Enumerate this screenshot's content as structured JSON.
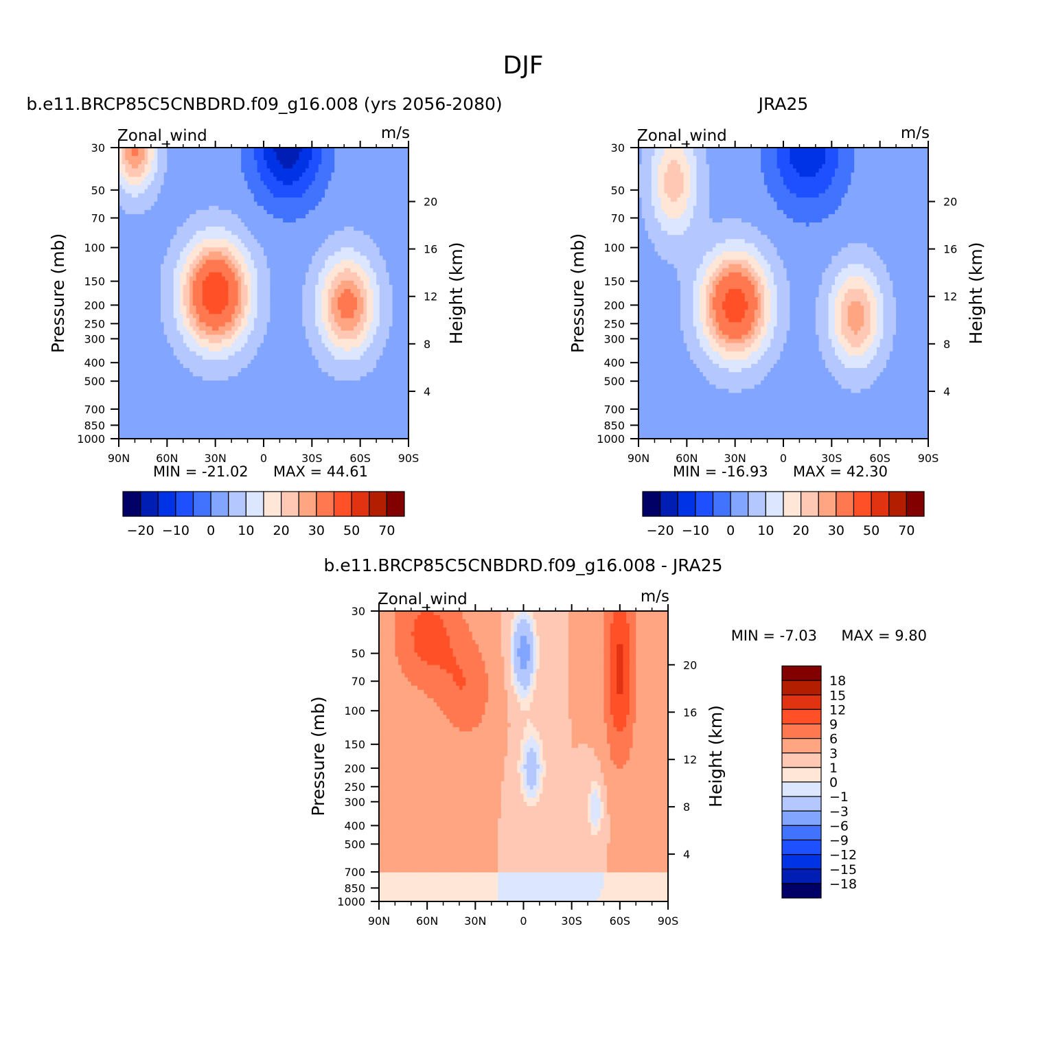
{
  "figure_title": "DJF",
  "chart_data": [
    {
      "type": "heatmap",
      "title": "b.e11.BRCP85C5CNBDRD.f09_g16.008 (yrs 2056-2080)",
      "left_string": "Zonal_wind",
      "right_string": "m/s",
      "ylabel": "Pressure (mb)",
      "y2label": "Height (km)",
      "x_ticks": [
        "90N",
        "60N",
        "30N",
        "0",
        "30S",
        "60S",
        "90S"
      ],
      "x_range": [
        90,
        -90
      ],
      "y_ticks": [
        "30",
        "50",
        "70",
        "100",
        "150",
        "200",
        "250",
        "300",
        "400",
        "500",
        "700",
        "850",
        "1000"
      ],
      "y_range": [
        1000,
        30
      ],
      "y_scale": "log",
      "y2_ticks": [
        "20",
        "16",
        "12",
        "8",
        "4"
      ],
      "min_label": "MIN = -21.02",
      "max_label": "MAX = 44.61",
      "min": -21.02,
      "max": 44.61,
      "levels": [
        -25,
        -20,
        -15,
        -10,
        -5,
        0,
        5,
        10,
        15,
        20,
        25,
        30,
        40,
        50,
        60,
        70
      ],
      "colorbar_labels": [
        "-20",
        "-10",
        "0",
        "10",
        "20",
        "30",
        "50",
        "70"
      ],
      "colorbar_orientation": "horizontal",
      "jets": [
        {
          "lat": 30,
          "p": 175,
          "peak": 44.6,
          "lat_width": 14,
          "logp_width": 0.42
        },
        {
          "lat": -52,
          "p": 200,
          "peak": 30,
          "lat_width": 12,
          "logp_width": 0.4
        },
        {
          "lat": 80,
          "p": 30,
          "peak": 28,
          "lat_width": 9,
          "logp_width": 0.35
        }
      ],
      "easterlies": [
        {
          "lat": -15,
          "p": 30,
          "peak": -21,
          "lat_width": 15,
          "logp_width": 0.45
        }
      ]
    },
    {
      "type": "heatmap",
      "title": "JRA25",
      "left_string": "Zonal_wind",
      "right_string": "m/s",
      "ylabel": "Pressure (mb)",
      "y2label": "Height (km)",
      "x_ticks": [
        "90N",
        "60N",
        "30N",
        "0",
        "30S",
        "60S",
        "90S"
      ],
      "x_range": [
        90,
        -90
      ],
      "y_ticks": [
        "30",
        "50",
        "70",
        "100",
        "150",
        "200",
        "250",
        "300",
        "400",
        "500",
        "700",
        "850",
        "1000"
      ],
      "y_range": [
        1000,
        30
      ],
      "y_scale": "log",
      "y2_ticks": [
        "20",
        "16",
        "12",
        "8",
        "4"
      ],
      "min_label": "MIN = -16.93",
      "max_label": "MAX = 42.30",
      "min": -16.93,
      "max": 42.3,
      "levels": [
        -25,
        -20,
        -15,
        -10,
        -5,
        0,
        5,
        10,
        15,
        20,
        25,
        30,
        40,
        50,
        60,
        70
      ],
      "colorbar_labels": [
        "-20",
        "-10",
        "0",
        "10",
        "20",
        "30",
        "50",
        "70"
      ],
      "colorbar_orientation": "horizontal",
      "jets": [
        {
          "lat": 30,
          "p": 200,
          "peak": 42.3,
          "lat_width": 14,
          "logp_width": 0.42
        },
        {
          "lat": -45,
          "p": 230,
          "peak": 25,
          "lat_width": 11,
          "logp_width": 0.4
        },
        {
          "lat": 68,
          "p": 45,
          "peak": 20,
          "lat_width": 10,
          "logp_width": 0.45
        }
      ],
      "easterlies": [
        {
          "lat": -15,
          "p": 30,
          "peak": -17,
          "lat_width": 16,
          "logp_width": 0.5
        }
      ]
    },
    {
      "type": "heatmap",
      "title": "b.e11.BRCP85C5CNBDRD.f09_g16.008 - JRA25",
      "left_string": "Zonal_wind",
      "right_string": "m/s",
      "ylabel": "Pressure (mb)",
      "y2label": "Height (km)",
      "x_ticks": [
        "90N",
        "60N",
        "30N",
        "0",
        "30S",
        "60S",
        "90S"
      ],
      "x_range": [
        90,
        -90
      ],
      "y_ticks": [
        "30",
        "50",
        "70",
        "100",
        "150",
        "200",
        "250",
        "300",
        "400",
        "500",
        "700",
        "850",
        "1000"
      ],
      "y_range": [
        1000,
        30
      ],
      "y_scale": "log",
      "y2_ticks": [
        "20",
        "16",
        "12",
        "8",
        "4"
      ],
      "min_label": "MIN = -7.03",
      "max_label": "MAX = 9.80",
      "min": -7.03,
      "max": 9.8,
      "levels": [
        -21,
        -18,
        -15,
        -12,
        -9,
        -6,
        -3,
        -1,
        0,
        1,
        3,
        6,
        9,
        12,
        15,
        18,
        21
      ],
      "colorbar_labels": [
        "18",
        "15",
        "12",
        "9",
        "6",
        "3",
        "1",
        "0",
        "-1",
        "-3",
        "-6",
        "-9",
        "-12",
        "-15",
        "-18"
      ],
      "colorbar_orientation": "vertical",
      "jets": [
        {
          "lat": -60,
          "p": 60,
          "peak": 9.8,
          "lat_width": 7,
          "logp_width": 0.8
        },
        {
          "lat": 60,
          "p": 40,
          "peak": 7,
          "lat_width": 16,
          "logp_width": 0.5
        },
        {
          "lat": 35,
          "p": 80,
          "peak": 5,
          "lat_width": 12,
          "logp_width": 0.45
        }
      ],
      "easterlies": [
        {
          "lat": 0,
          "p": 50,
          "peak": -7,
          "lat_width": 6,
          "logp_width": 0.4
        },
        {
          "lat": -5,
          "p": 200,
          "peak": -5,
          "lat_width": 6,
          "logp_width": 0.35
        },
        {
          "lat": -45,
          "p": 320,
          "peak": -4,
          "lat_width": 4,
          "logp_width": 0.3
        }
      ]
    }
  ],
  "colors": {
    "panel_fill": [
      "#000066",
      "#001eb4",
      "#0032e6",
      "#1e50ff",
      "#4173ff",
      "#82a5ff",
      "#b4c8ff",
      "#dce6ff",
      "#ffe6d7",
      "#ffc8b4",
      "#ffa582",
      "#ff7850",
      "#ff5028",
      "#e13212",
      "#b41e00",
      "#820000"
    ],
    "diff_fill": [
      "#000066",
      "#001eb4",
      "#0032e6",
      "#1e50ff",
      "#4173ff",
      "#82a5ff",
      "#b4c8ff",
      "#dce6ff",
      "#ffe6d7",
      "#ffc8b4",
      "#ffa582",
      "#ff7850",
      "#ff5028",
      "#e13212",
      "#b41e00",
      "#820000"
    ]
  }
}
